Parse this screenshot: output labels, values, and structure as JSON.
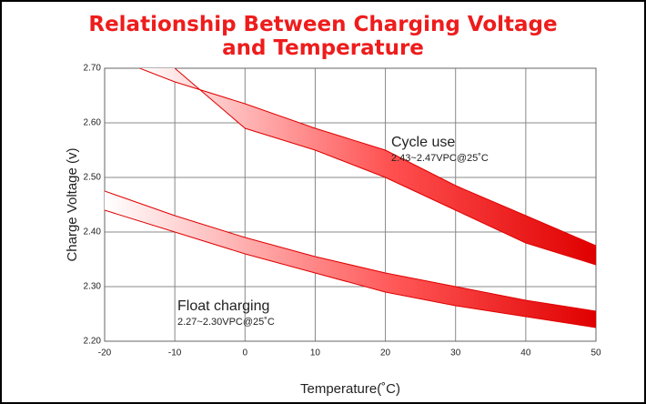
{
  "chart_data": {
    "type": "band",
    "title": "Relationship Between Charging Voltage and Temperature",
    "x_label": "Temperature(˚C)",
    "y_label": "Charge Voltage  (v)",
    "xlim": [
      -20,
      50
    ],
    "xticks": [
      -20,
      -10,
      0,
      10,
      20,
      30,
      40,
      50
    ],
    "ylim": [
      2.2,
      2.7
    ],
    "yticks": [
      {
        "value": 2.2,
        "label": "2.20"
      },
      {
        "value": 2.3,
        "label": "2.30"
      },
      {
        "value": 2.4,
        "label": "2.40"
      },
      {
        "value": 2.5,
        "label": "2.50"
      },
      {
        "value": 2.6,
        "label": "2.60"
      },
      {
        "value": 2.7,
        "label": "2.70"
      }
    ],
    "grid": true,
    "bands": [
      {
        "name": "Cycle use",
        "note": "2.43~2.47VPC@25˚C",
        "color": "#e00000",
        "upper": {
          "x": [
            -15,
            -10,
            0,
            10,
            20,
            30,
            40,
            50
          ],
          "values": [
            2.7,
            2.675,
            2.635,
            2.59,
            2.55,
            2.485,
            2.43,
            2.375
          ]
        },
        "lower": {
          "x": [
            -10,
            0,
            10,
            20,
            30,
            40,
            50
          ],
          "values": [
            2.7,
            2.59,
            2.55,
            2.5,
            2.44,
            2.38,
            2.34
          ]
        }
      },
      {
        "name": "Float charging",
        "note": "2.27~2.30VPC@25˚C",
        "color": "#e00000",
        "upper": {
          "x": [
            -20,
            -10,
            0,
            10,
            20,
            30,
            40,
            50
          ],
          "values": [
            2.475,
            2.43,
            2.39,
            2.355,
            2.325,
            2.3,
            2.275,
            2.255
          ]
        },
        "lower": {
          "x": [
            -20,
            -10,
            0,
            10,
            20,
            30,
            40,
            50
          ],
          "values": [
            2.44,
            2.4,
            2.36,
            2.325,
            2.29,
            2.265,
            2.245,
            2.225
          ]
        }
      }
    ]
  }
}
